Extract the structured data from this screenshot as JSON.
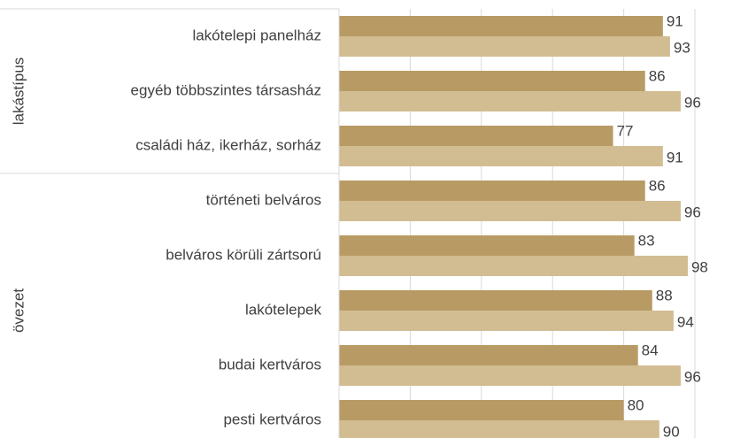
{
  "chart_data": {
    "type": "bar",
    "orientation": "horizontal",
    "groups": [
      {
        "name": "lakástípus",
        "categories": [
          "lakótelepi panelház",
          "egyéb többszintes társasház",
          "családi ház, ikerház, sorház"
        ]
      },
      {
        "name": "övezet",
        "categories": [
          "történeti belváros",
          "belváros körüli zártsorú",
          "lakótelepek",
          "budai kertváros",
          "pesti kertváros"
        ]
      }
    ],
    "series": [
      {
        "color": "#b89b64",
        "values": [
          91,
          86,
          77,
          86,
          83,
          88,
          84,
          80
        ]
      },
      {
        "color": "#d2bc92",
        "values": [
          93,
          96,
          91,
          96,
          98,
          94,
          96,
          90
        ]
      }
    ],
    "xlim": [
      0,
      100
    ],
    "xticks": [
      0,
      20,
      40,
      60,
      80,
      100
    ],
    "grid": true
  }
}
